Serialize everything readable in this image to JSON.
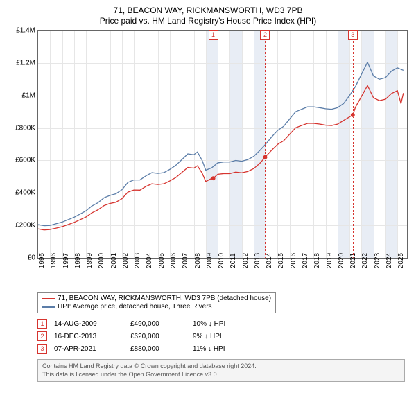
{
  "title": "71, BEACON WAY, RICKMANSWORTH, WD3 7PB",
  "subtitle": "Price paid vs. HM Land Registry's House Price Index (HPI)",
  "chart": {
    "type": "line",
    "background_color": "#ffffff",
    "grid_color": "#e6e6e6",
    "border_color": "#666666",
    "font_family": "Arial",
    "title_fontsize": 12,
    "tick_fontsize": 10,
    "x": {
      "min": 1995,
      "max": 2025.8,
      "ticks": [
        1995,
        1996,
        1997,
        1998,
        1999,
        2000,
        2001,
        2002,
        2003,
        2004,
        2005,
        2006,
        2007,
        2008,
        2009,
        2010,
        2011,
        2012,
        2013,
        2014,
        2015,
        2016,
        2017,
        2018,
        2019,
        2020,
        2021,
        2022,
        2023,
        2024,
        2025
      ],
      "tick_labels": [
        "1995",
        "1996",
        "1997",
        "1998",
        "1999",
        "2000",
        "2001",
        "2002",
        "2003",
        "2004",
        "2005",
        "2006",
        "2007",
        "2008",
        "2009",
        "2010",
        "2011",
        "2012",
        "2013",
        "2014",
        "2015",
        "2016",
        "2017",
        "2018",
        "2019",
        "2020",
        "2021",
        "2022",
        "2023",
        "2024",
        "2025"
      ]
    },
    "y": {
      "min": 0,
      "max": 1400000,
      "ticks": [
        0,
        200000,
        400000,
        600000,
        800000,
        1000000,
        1200000,
        1400000
      ],
      "tick_labels": [
        "£0",
        "£200K",
        "£400K",
        "£600K",
        "£800K",
        "£1M",
        "£1.2M",
        "£1.4M"
      ]
    },
    "shaded_bands": [
      {
        "from": 2009.0,
        "to": 2010.0,
        "color": "#e8edf5"
      },
      {
        "from": 2011.0,
        "to": 2012.0,
        "color": "#e8edf5"
      },
      {
        "from": 2013.0,
        "to": 2014.0,
        "color": "#e8edf5"
      },
      {
        "from": 2020.0,
        "to": 2021.0,
        "color": "#e8edf5"
      },
      {
        "from": 2022.0,
        "to": 2023.0,
        "color": "#e8edf5"
      },
      {
        "from": 2024.0,
        "to": 2025.0,
        "color": "#e8edf5"
      }
    ],
    "series": [
      {
        "name": "hpi",
        "label": "HPI: Average price, detached house, Three Rivers",
        "color": "#5b7da8",
        "line_width": 1.3,
        "points": [
          [
            1995,
            205000
          ],
          [
            1995.5,
            198000
          ],
          [
            1996,
            200000
          ],
          [
            1996.5,
            210000
          ],
          [
            1997,
            220000
          ],
          [
            1997.5,
            235000
          ],
          [
            1998,
            250000
          ],
          [
            1998.5,
            270000
          ],
          [
            1999,
            290000
          ],
          [
            1999.5,
            320000
          ],
          [
            2000,
            340000
          ],
          [
            2000.5,
            370000
          ],
          [
            2001,
            385000
          ],
          [
            2001.5,
            395000
          ],
          [
            2002,
            420000
          ],
          [
            2002.5,
            465000
          ],
          [
            2003,
            480000
          ],
          [
            2003.5,
            480000
          ],
          [
            2004,
            505000
          ],
          [
            2004.5,
            525000
          ],
          [
            2005,
            520000
          ],
          [
            2005.5,
            525000
          ],
          [
            2006,
            545000
          ],
          [
            2006.5,
            570000
          ],
          [
            2007,
            605000
          ],
          [
            2007.5,
            640000
          ],
          [
            2008,
            635000
          ],
          [
            2008.3,
            652000
          ],
          [
            2008.7,
            600000
          ],
          [
            2009,
            540000
          ],
          [
            2009.5,
            555000
          ],
          [
            2010,
            585000
          ],
          [
            2010.5,
            590000
          ],
          [
            2011,
            590000
          ],
          [
            2011.5,
            600000
          ],
          [
            2012,
            595000
          ],
          [
            2012.5,
            605000
          ],
          [
            2013,
            625000
          ],
          [
            2013.5,
            660000
          ],
          [
            2014,
            700000
          ],
          [
            2014.5,
            745000
          ],
          [
            2015,
            785000
          ],
          [
            2015.5,
            810000
          ],
          [
            2016,
            855000
          ],
          [
            2016.5,
            900000
          ],
          [
            2017,
            915000
          ],
          [
            2017.5,
            930000
          ],
          [
            2018,
            930000
          ],
          [
            2018.5,
            925000
          ],
          [
            2019,
            918000
          ],
          [
            2019.5,
            915000
          ],
          [
            2020,
            925000
          ],
          [
            2020.5,
            950000
          ],
          [
            2021,
            1000000
          ],
          [
            2021.5,
            1055000
          ],
          [
            2022,
            1130000
          ],
          [
            2022.5,
            1205000
          ],
          [
            2023,
            1120000
          ],
          [
            2023.5,
            1100000
          ],
          [
            2024,
            1110000
          ],
          [
            2024.5,
            1150000
          ],
          [
            2025,
            1170000
          ],
          [
            2025.5,
            1155000
          ]
        ]
      },
      {
        "name": "property",
        "label": "71, BEACON WAY, RICKMANSWORTH, WD3 7PB (detached house)",
        "color": "#d6342f",
        "line_width": 1.3,
        "points": [
          [
            1995,
            178000
          ],
          [
            1995.5,
            172000
          ],
          [
            1996,
            175000
          ],
          [
            1996.5,
            183000
          ],
          [
            1997,
            192000
          ],
          [
            1997.5,
            205000
          ],
          [
            1998,
            218000
          ],
          [
            1998.5,
            235000
          ],
          [
            1999,
            252000
          ],
          [
            1999.5,
            278000
          ],
          [
            2000,
            296000
          ],
          [
            2000.5,
            322000
          ],
          [
            2001,
            335000
          ],
          [
            2001.5,
            343000
          ],
          [
            2002,
            365000
          ],
          [
            2002.5,
            405000
          ],
          [
            2003,
            418000
          ],
          [
            2003.5,
            417000
          ],
          [
            2004,
            440000
          ],
          [
            2004.5,
            456000
          ],
          [
            2005,
            452000
          ],
          [
            2005.5,
            456000
          ],
          [
            2006,
            474000
          ],
          [
            2006.5,
            495000
          ],
          [
            2007,
            526000
          ],
          [
            2007.5,
            557000
          ],
          [
            2008,
            553000
          ],
          [
            2008.3,
            567000
          ],
          [
            2008.7,
            522000
          ],
          [
            2009,
            470000
          ],
          [
            2009.5,
            490000
          ],
          [
            2009.62,
            490000
          ],
          [
            2010,
            515000
          ],
          [
            2010.5,
            519000
          ],
          [
            2011,
            519000
          ],
          [
            2011.5,
            528000
          ],
          [
            2012,
            524000
          ],
          [
            2012.5,
            532000
          ],
          [
            2013,
            550000
          ],
          [
            2013.5,
            581000
          ],
          [
            2013.96,
            620000
          ],
          [
            2014,
            624000
          ],
          [
            2014.5,
            663000
          ],
          [
            2015,
            699000
          ],
          [
            2015.5,
            721000
          ],
          [
            2016,
            761000
          ],
          [
            2016.5,
            801000
          ],
          [
            2017,
            815000
          ],
          [
            2017.5,
            828000
          ],
          [
            2018,
            828000
          ],
          [
            2018.5,
            824000
          ],
          [
            2019,
            817000
          ],
          [
            2019.5,
            815000
          ],
          [
            2020,
            823000
          ],
          [
            2020.5,
            846000
          ],
          [
            2021.27,
            880000
          ],
          [
            2021.5,
            928000
          ],
          [
            2022,
            994000
          ],
          [
            2022.5,
            1061000
          ],
          [
            2023,
            986000
          ],
          [
            2023.5,
            968000
          ],
          [
            2024,
            977000
          ],
          [
            2024.5,
            1012000
          ],
          [
            2025,
            1030000
          ],
          [
            2025.3,
            950000
          ],
          [
            2025.5,
            1015000
          ]
        ]
      }
    ],
    "markers": [
      {
        "num": "1",
        "x": 2009.62,
        "y": 490000
      },
      {
        "num": "2",
        "x": 2013.96,
        "y": 620000
      },
      {
        "num": "3",
        "x": 2021.27,
        "y": 880000
      }
    ],
    "marker_box_color": "#d6342f",
    "marker_dot_color": "#d6342f",
    "marker_dot_radius": 3
  },
  "legend": {
    "items": [
      {
        "color": "#d6342f",
        "label": "71, BEACON WAY, RICKMANSWORTH, WD3 7PB (detached house)"
      },
      {
        "color": "#5b7da8",
        "label": "HPI: Average price, detached house, Three Rivers"
      }
    ]
  },
  "transactions": [
    {
      "num": "1",
      "date": "14-AUG-2009",
      "price": "£490,000",
      "vs": "10% ↓ HPI"
    },
    {
      "num": "2",
      "date": "16-DEC-2013",
      "price": "£620,000",
      "vs": "9% ↓ HPI"
    },
    {
      "num": "3",
      "date": "07-APR-2021",
      "price": "£880,000",
      "vs": "11% ↓ HPI"
    }
  ],
  "attribution": {
    "line1": "Contains HM Land Registry data © Crown copyright and database right 2024.",
    "line2": "This data is licensed under the Open Government Licence v3.0."
  }
}
